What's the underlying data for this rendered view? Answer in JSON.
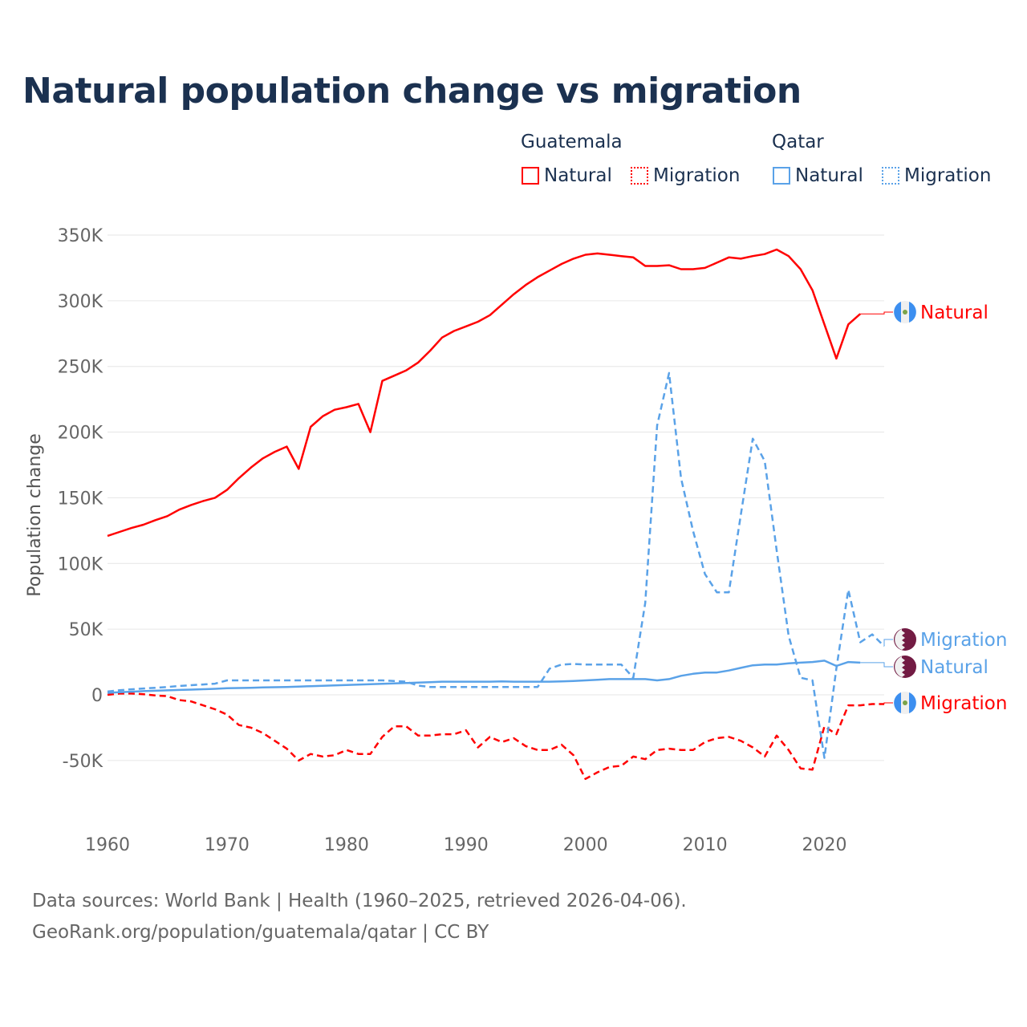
{
  "chart_data": {
    "type": "line",
    "title": "Natural population change vs migration",
    "ylabel": "Population change",
    "xlabel": "",
    "xlim": [
      1960,
      2025
    ],
    "ylim": [
      -50000,
      350000
    ],
    "grid": true,
    "x_ticks": [
      "1960",
      "1970",
      "1980",
      "1990",
      "2000",
      "2010",
      "2020"
    ],
    "y_ticks": [
      {
        "v": 350000,
        "label": "350K"
      },
      {
        "v": 300000,
        "label": "300K"
      },
      {
        "v": 250000,
        "label": "250K"
      },
      {
        "v": 200000,
        "label": "200K"
      },
      {
        "v": 150000,
        "label": "150K"
      },
      {
        "v": 100000,
        "label": "100K"
      },
      {
        "v": 50000,
        "label": "50K"
      },
      {
        "v": 0,
        "label": "0"
      },
      {
        "v": -50000,
        "label": "-50K"
      }
    ],
    "legend": {
      "placement": "top-right",
      "groups": [
        {
          "name": "Guatemala",
          "items": [
            "Natural",
            "Migration"
          ]
        },
        {
          "name": "Qatar",
          "items": [
            "Natural",
            "Migration"
          ]
        }
      ]
    },
    "series": [
      {
        "name": "Guatemala Natural",
        "country": "Guatemala",
        "kind": "Natural",
        "label": "Natural",
        "color": "#ff0000",
        "dash": false,
        "start": 1960,
        "values": [
          121000,
          124000,
          127000,
          129500,
          133000,
          136000,
          141000,
          144500,
          147500,
          150000,
          156000,
          165000,
          173000,
          180000,
          185000,
          189000,
          172000,
          204000,
          212000,
          217000,
          219000,
          221500,
          200000,
          239000,
          243000,
          247000,
          253000,
          262000,
          272000,
          277000,
          280500,
          284000,
          289000,
          297000,
          305000,
          312000,
          318000,
          323000,
          328000,
          332000,
          335000,
          336000,
          335000,
          334000,
          333000,
          326500,
          326500,
          327000,
          324000,
          324000,
          325000,
          329000,
          333000,
          332000,
          334000,
          335500,
          339000,
          334000,
          324000,
          308000,
          282000,
          256000,
          282000,
          290000
        ]
      },
      {
        "name": "Guatemala Migration",
        "country": "Guatemala",
        "kind": "Migration",
        "label": "Migration",
        "color": "#ff0000",
        "dash": true,
        "start": 1960,
        "values": [
          0,
          1000,
          1000,
          500,
          -500,
          -1000,
          -4000,
          -5000,
          -8000,
          -11000,
          -15000,
          -23000,
          -25000,
          -29000,
          -35000,
          -41000,
          -50000,
          -45000,
          -47000,
          -46000,
          -42000,
          -45000,
          -45000,
          -32000,
          -24000,
          -24000,
          -31000,
          -31000,
          -30000,
          -30000,
          -27000,
          -40000,
          -32000,
          -36000,
          -33000,
          -39000,
          -42000,
          -42000,
          -38000,
          -46000,
          -64000,
          -59000,
          -55000,
          -54000,
          -47000,
          -49000,
          -42000,
          -41000,
          -42000,
          -42000,
          -36000,
          -33000,
          -32000,
          -35000,
          -40000,
          -47000,
          -31000,
          -42000,
          -56000,
          -57000,
          -24000,
          -30000,
          -8000,
          -8000,
          -7000,
          -7000
        ]
      },
      {
        "name": "Qatar Natural",
        "country": "Qatar",
        "kind": "Natural",
        "label": "Natural",
        "color": "#5aa2e8",
        "dash": false,
        "start": 1960,
        "values": [
          1500,
          2000,
          2400,
          2800,
          3100,
          3400,
          3700,
          4000,
          4300,
          4600,
          5000,
          5200,
          5400,
          5600,
          5800,
          6000,
          6300,
          6600,
          6900,
          7200,
          7500,
          7800,
          8100,
          8400,
          8700,
          9000,
          9300,
          9600,
          10000,
          10000,
          10000,
          10000,
          10000,
          10200,
          10000,
          10000,
          10000,
          10000,
          10200,
          10500,
          11000,
          11500,
          12000,
          12000,
          12000,
          12000,
          11000,
          12000,
          14500,
          16000,
          17000,
          17000,
          18500,
          20500,
          22500,
          23000,
          23000,
          24000,
          24500,
          25000,
          26000,
          22000,
          25000,
          24500
        ]
      },
      {
        "name": "Qatar Migration",
        "country": "Qatar",
        "kind": "Migration",
        "label": "Migration",
        "color": "#5aa2e8",
        "dash": true,
        "start": 1960,
        "values": [
          2500,
          3500,
          4200,
          4800,
          5400,
          6000,
          6700,
          7300,
          7900,
          8500,
          11000,
          11000,
          11000,
          11000,
          11000,
          11000,
          11000,
          11000,
          11000,
          11000,
          11000,
          11000,
          11000,
          11000,
          10500,
          10000,
          7000,
          6000,
          6000,
          6000,
          6000,
          6000,
          6000,
          6000,
          6000,
          6000,
          6000,
          20000,
          23000,
          23500,
          23000,
          23000,
          23000,
          23000,
          13000,
          70000,
          205000,
          245000,
          165000,
          125000,
          92000,
          78000,
          78000,
          137000,
          195000,
          178000,
          110000,
          45000,
          13000,
          11000,
          -48000,
          20000,
          80000,
          40000,
          46000,
          37000
        ]
      }
    ],
    "end_labels": [
      {
        "series": 0,
        "text": "Natural",
        "flag": "guatemala"
      },
      {
        "series": 3,
        "text": "Migration",
        "flag": "qatar"
      },
      {
        "series": 2,
        "text": "Natural",
        "flag": "qatar"
      },
      {
        "series": 1,
        "text": "Migration",
        "flag": "guatemala"
      }
    ]
  },
  "footer": {
    "line1": "Data sources: World Bank | Health (1960–2025, retrieved 2026-04-06).",
    "line2": "GeoRank.org/population/guatemala/qatar | CC BY"
  }
}
